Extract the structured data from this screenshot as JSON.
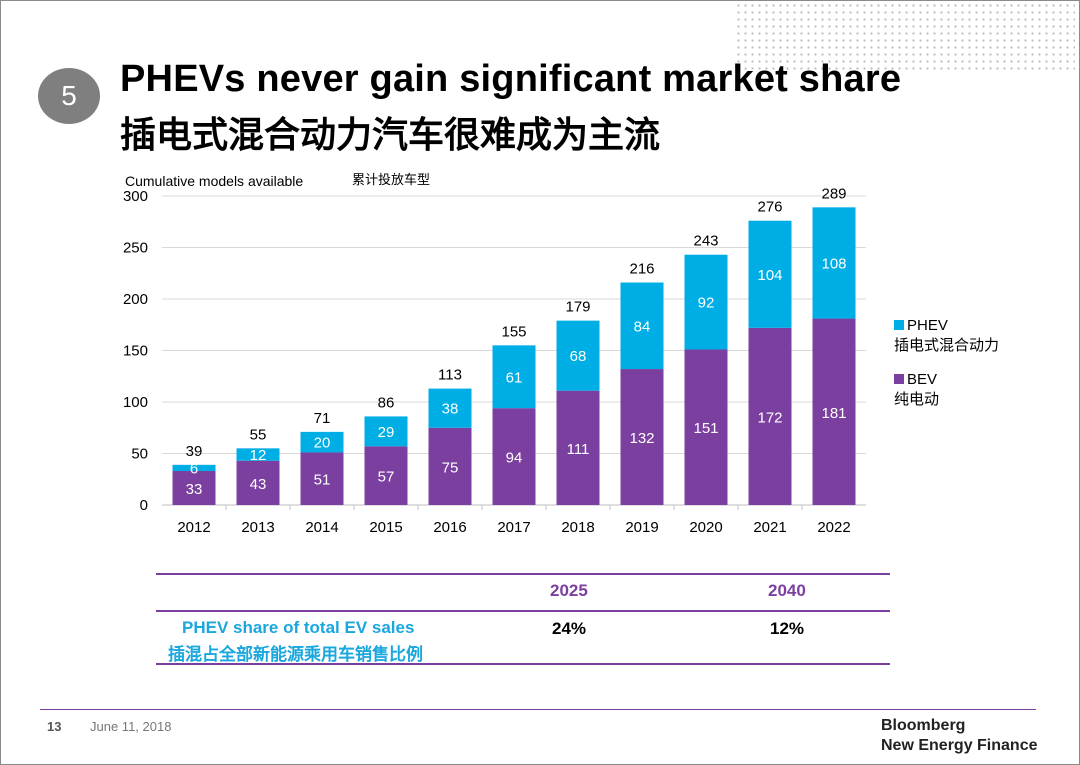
{
  "slide": {
    "number": "5",
    "title_en": "PHEVs never gain significant market share",
    "title_cn": "插电式混合动力汽车很难成为主流",
    "page": "13",
    "date": "June 11, 2018",
    "brand_line1": "Bloomberg",
    "brand_line2": "New Energy Finance"
  },
  "colors": {
    "phev": "#00aee6",
    "bev": "#7b3fa0",
    "accent": "#7b3fa0",
    "cyan_text": "#1aa7de",
    "grid": "#d9d9d9"
  },
  "chart_data": {
    "type": "bar",
    "stacked": true,
    "ylabel_en": "Cumulative models available",
    "ylabel_cn": "累计投放车型",
    "ylim": [
      0,
      300
    ],
    "yticks": [
      "0",
      "50",
      "100",
      "150",
      "200",
      "250",
      "300"
    ],
    "categories": [
      "2012",
      "2013",
      "2014",
      "2015",
      "2016",
      "2017",
      "2018",
      "2019",
      "2020",
      "2021",
      "2022"
    ],
    "series": [
      {
        "name": "BEV",
        "name_cn": "纯电动",
        "values": [
          33,
          43,
          51,
          57,
          75,
          94,
          111,
          132,
          151,
          172,
          181
        ]
      },
      {
        "name": "PHEV",
        "name_cn": "插电式混合动力",
        "values": [
          6,
          12,
          20,
          29,
          38,
          61,
          68,
          84,
          92,
          104,
          108
        ]
      }
    ],
    "totals": [
      39,
      55,
      71,
      86,
      113,
      155,
      179,
      216,
      243,
      276,
      289
    ],
    "grid": true,
    "legend_position": "right"
  },
  "share_table": {
    "years": [
      "2025",
      "2040"
    ],
    "label_en": "PHEV share of total EV sales",
    "label_cn": "插混占全部新能源乘用车销售比例",
    "values": [
      "24%",
      "12%"
    ]
  }
}
